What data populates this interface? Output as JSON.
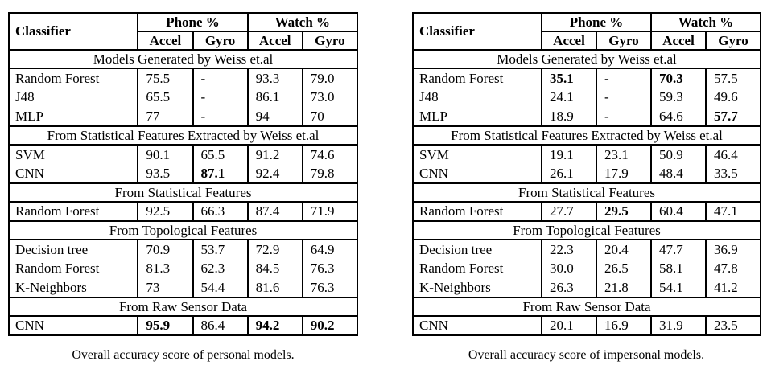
{
  "page": {
    "background": "#ffffff",
    "text_color": "#000000"
  },
  "tables": [
    {
      "caption": "Overall accuracy score of personal models.",
      "header": {
        "classifier": "Classifier",
        "phone": "Phone %",
        "watch": "Watch %",
        "cols": [
          "Accel",
          "Gyro",
          "Accel",
          "Gyro"
        ]
      },
      "sections": [
        {
          "title": "Models Generated by Weiss et.al",
          "rows": [
            {
              "label": "Random Forest",
              "values": [
                "75.5",
                "-",
                "93.3",
                "79.0"
              ],
              "bold": [
                false,
                false,
                false,
                false
              ]
            },
            {
              "label": "J48",
              "values": [
                "65.5",
                "-",
                "86.1",
                "73.0"
              ],
              "bold": [
                false,
                false,
                false,
                false
              ]
            },
            {
              "label": "MLP",
              "values": [
                "77",
                "-",
                "94",
                "70"
              ],
              "bold": [
                false,
                false,
                false,
                false
              ]
            }
          ]
        },
        {
          "title": "From Statistical Features Extracted by Weiss et.al",
          "rows": [
            {
              "label": "SVM",
              "values": [
                "90.1",
                "65.5",
                "91.2",
                "74.6"
              ],
              "bold": [
                false,
                false,
                false,
                false
              ]
            },
            {
              "label": "CNN",
              "values": [
                "93.5",
                "87.1",
                "92.4",
                "79.8"
              ],
              "bold": [
                false,
                true,
                false,
                false
              ]
            }
          ]
        },
        {
          "title": "From Statistical Features",
          "rows": [
            {
              "label": "Random Forest",
              "values": [
                "92.5",
                "66.3",
                "87.4",
                "71.9"
              ],
              "bold": [
                false,
                false,
                false,
                false
              ]
            }
          ]
        },
        {
          "title": "From Topological Features",
          "rows": [
            {
              "label": "Decision tree",
              "values": [
                "70.9",
                "53.7",
                "72.9",
                "64.9"
              ],
              "bold": [
                false,
                false,
                false,
                false
              ]
            },
            {
              "label": "Random Forest",
              "values": [
                "81.3",
                "62.3",
                "84.5",
                "76.3"
              ],
              "bold": [
                false,
                false,
                false,
                false
              ]
            },
            {
              "label": "K-Neighbors",
              "values": [
                "73",
                "54.4",
                "81.6",
                "76.3"
              ],
              "bold": [
                false,
                false,
                false,
                false
              ]
            }
          ]
        },
        {
          "title": "From Raw Sensor Data",
          "rows": [
            {
              "label": "CNN",
              "values": [
                "95.9",
                "86.4",
                "94.2",
                "90.2"
              ],
              "bold": [
                true,
                false,
                true,
                true
              ]
            }
          ]
        }
      ]
    },
    {
      "caption": "Overall accuracy score of impersonal models.",
      "header": {
        "classifier": "Classifier",
        "phone": "Phone %",
        "watch": "Watch %",
        "cols": [
          "Accel",
          "Gyro",
          "Accel",
          "Gyro"
        ]
      },
      "sections": [
        {
          "title": "Models Generated by Weiss et.al",
          "rows": [
            {
              "label": "Random Forest",
              "values": [
                "35.1",
                "-",
                "70.3",
                "57.5"
              ],
              "bold": [
                true,
                false,
                true,
                false
              ]
            },
            {
              "label": "J48",
              "values": [
                "24.1",
                "-",
                "59.3",
                "49.6"
              ],
              "bold": [
                false,
                false,
                false,
                false
              ]
            },
            {
              "label": "MLP",
              "values": [
                "18.9",
                "-",
                "64.6",
                "57.7"
              ],
              "bold": [
                false,
                false,
                false,
                true
              ]
            }
          ]
        },
        {
          "title": "From Statistical Features Extracted by Weiss et.al",
          "rows": [
            {
              "label": "SVM",
              "values": [
                "19.1",
                "23.1",
                "50.9",
                "46.4"
              ],
              "bold": [
                false,
                false,
                false,
                false
              ]
            },
            {
              "label": "CNN",
              "values": [
                "26.1",
                "17.9",
                "48.4",
                "33.5"
              ],
              "bold": [
                false,
                false,
                false,
                false
              ]
            }
          ]
        },
        {
          "title": "From Statistical Features",
          "rows": [
            {
              "label": "Random Forest",
              "values": [
                "27.7",
                "29.5",
                "60.4",
                "47.1"
              ],
              "bold": [
                false,
                true,
                false,
                false
              ]
            }
          ]
        },
        {
          "title": "From Topological Features",
          "rows": [
            {
              "label": "Decision tree",
              "values": [
                "22.3",
                "20.4",
                "47.7",
                "36.9"
              ],
              "bold": [
                false,
                false,
                false,
                false
              ]
            },
            {
              "label": "Random Forest",
              "values": [
                "30.0",
                "26.5",
                "58.1",
                "47.8"
              ],
              "bold": [
                false,
                false,
                false,
                false
              ]
            },
            {
              "label": "K-Neighbors",
              "values": [
                "26.3",
                "21.8",
                "54.1",
                "41.2"
              ],
              "bold": [
                false,
                false,
                false,
                false
              ]
            }
          ]
        },
        {
          "title": "From Raw Sensor Data",
          "rows": [
            {
              "label": "CNN",
              "values": [
                "20.1",
                "16.9",
                "31.9",
                "23.5"
              ],
              "bold": [
                false,
                false,
                false,
                false
              ]
            }
          ]
        }
      ]
    }
  ]
}
